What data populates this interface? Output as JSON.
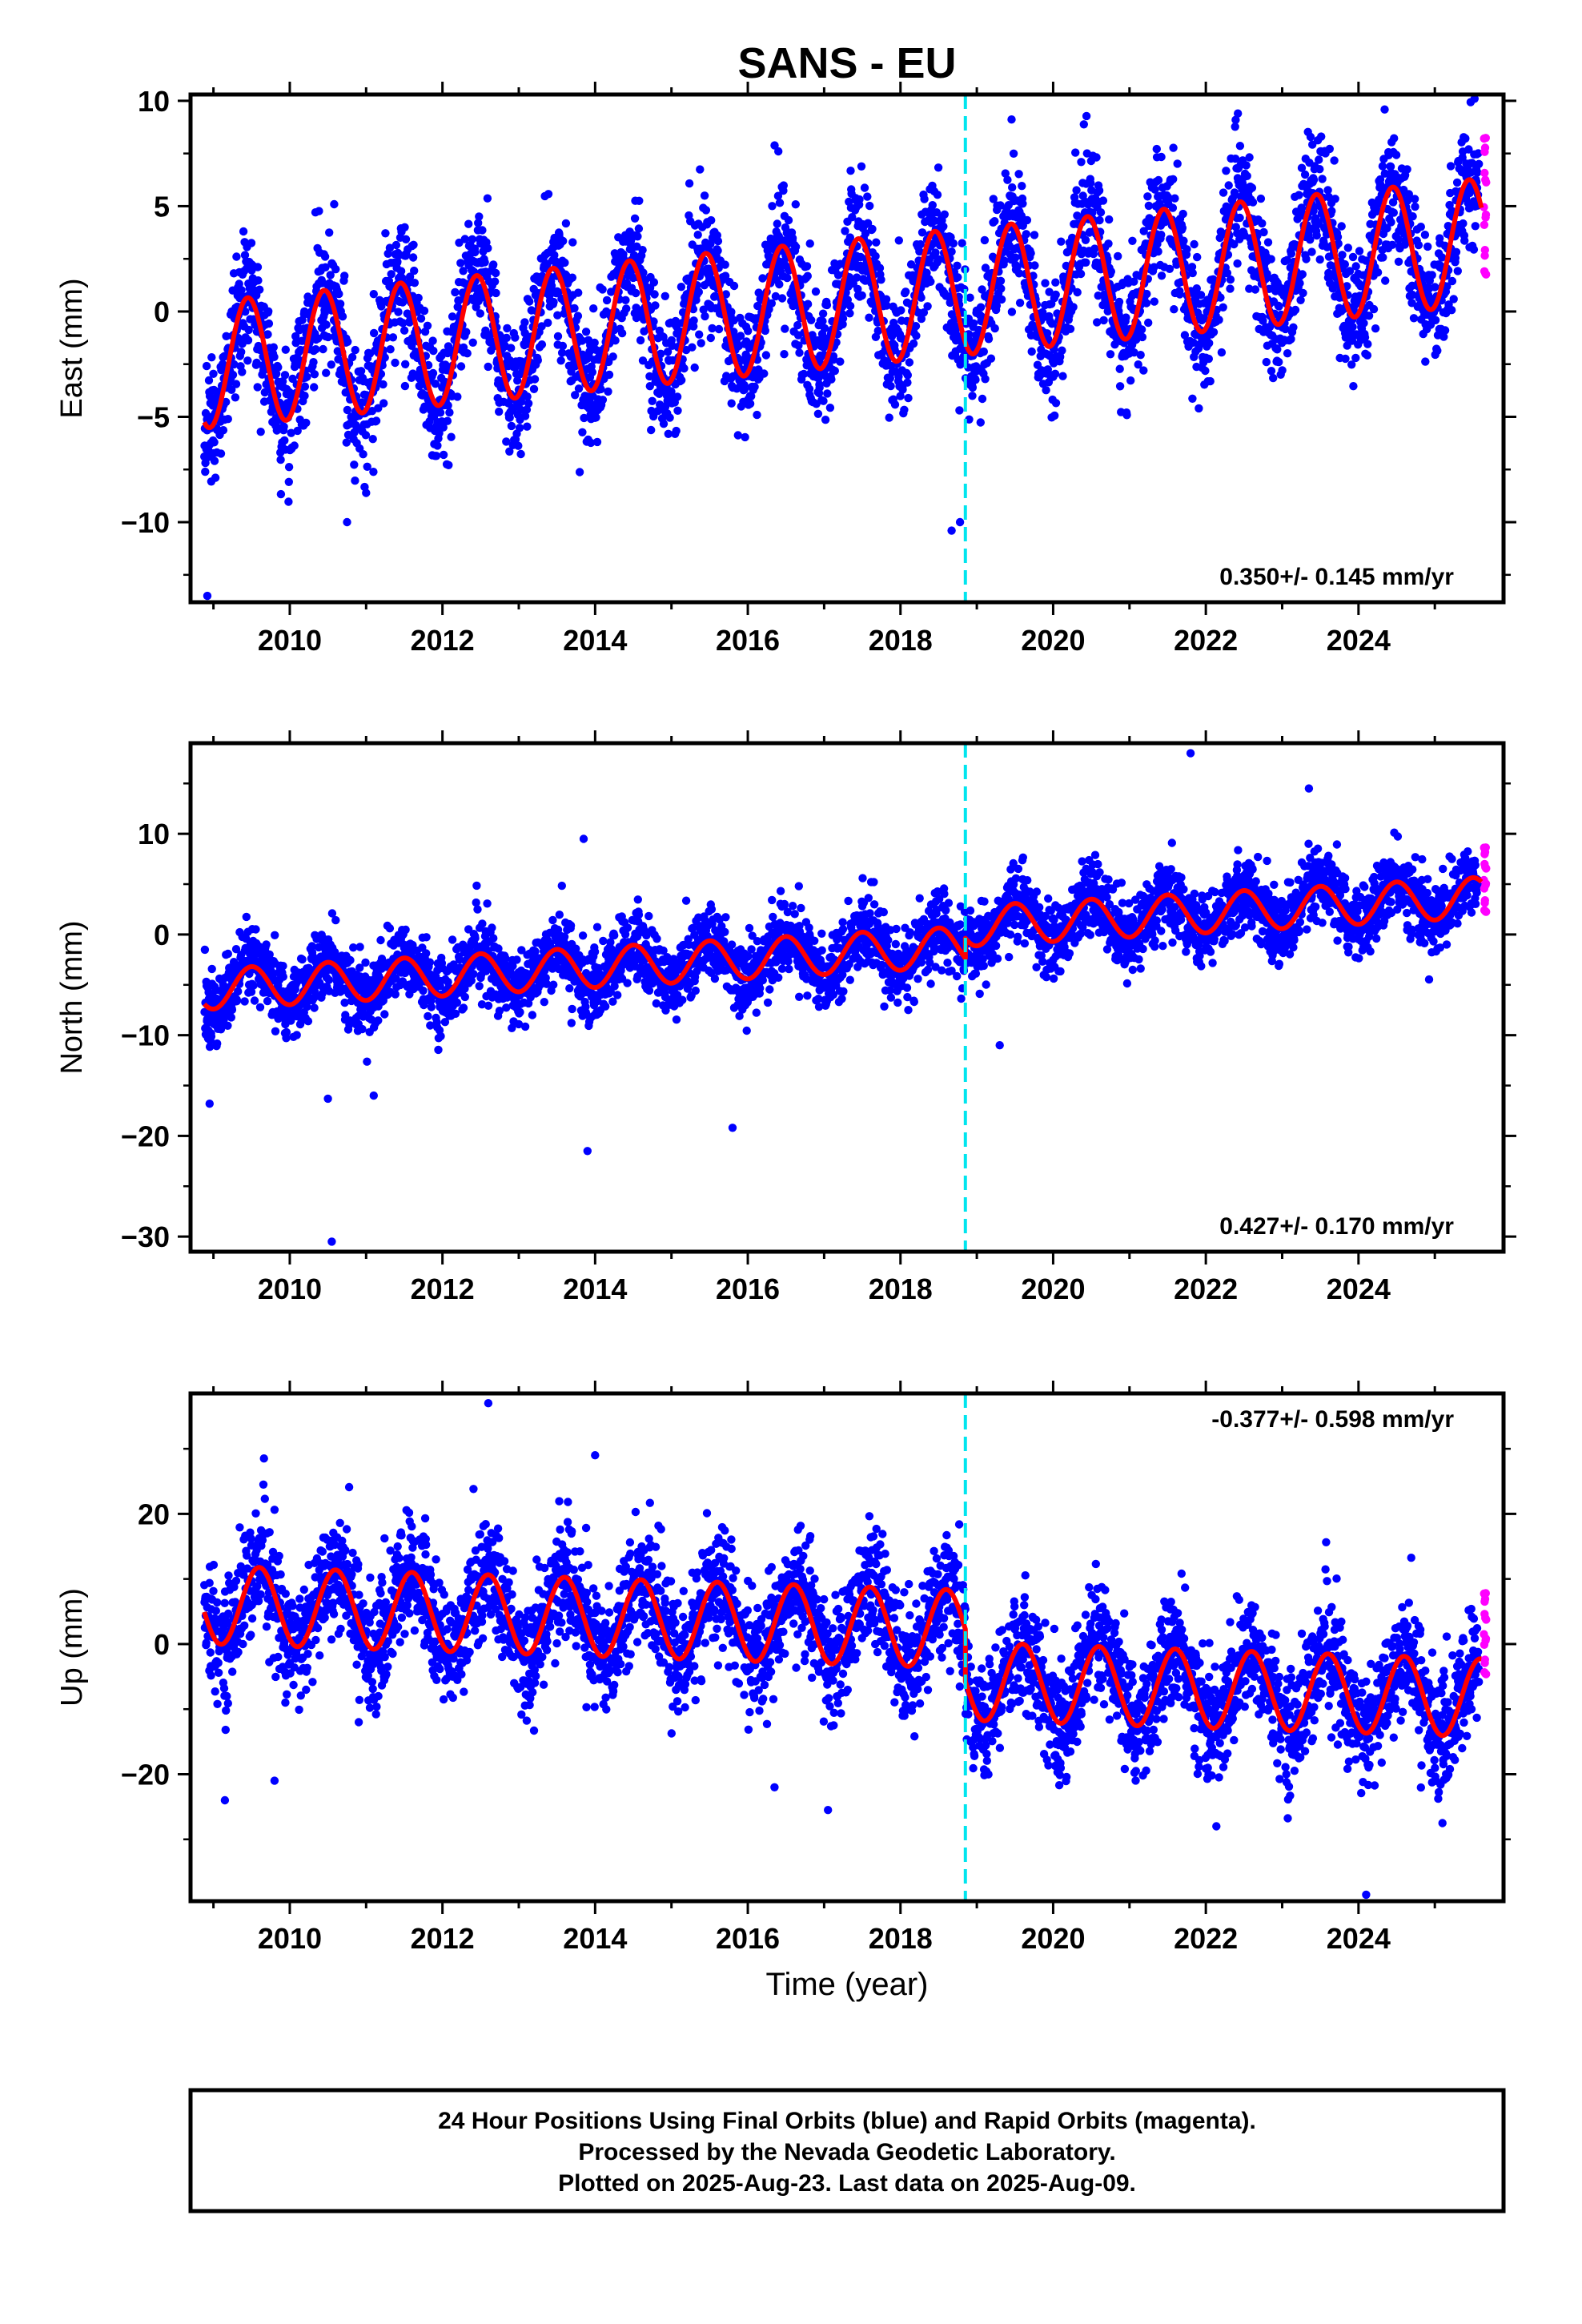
{
  "chart_data": {
    "title": "SANS - EU",
    "xlabel": "Time (year)",
    "type": "scatter",
    "xlim": [
      2008.7,
      2025.9
    ],
    "x_ticks": [
      2010,
      2012,
      2014,
      2016,
      2018,
      2020,
      2022,
      2024
    ],
    "x_tick_labels": [
      "2010",
      "2012",
      "2014",
      "2016",
      "2018",
      "2020",
      "2022",
      "2024"
    ],
    "offset_year": 2018.85,
    "colors": {
      "final": "#0000ff",
      "rapid": "#ff00ff",
      "model": "#ff0000",
      "offset": "#00e5ee"
    },
    "data_start": 2008.88,
    "data_end": 2025.61,
    "rapid_start": 2025.58,
    "panels": [
      {
        "name": "east",
        "ylabel": "East (mm)",
        "ylim": [
          -13.8,
          10.3
        ],
        "y_ticks": [
          10,
          5,
          0,
          -5,
          -10
        ],
        "y_tick_labels": [
          "10",
          "5",
          "0",
          "−5",
          "−10"
        ],
        "rate_label": "0.350+/- 0.145 mm/yr",
        "rate_position": "bottom-right",
        "model": {
          "intercept_2009": -2.5,
          "rate": 0.35,
          "annual_amp": 3.0,
          "peak_phase": 0.45,
          "offset_step": 0.0
        },
        "noise_sd": 1.5,
        "outliers": [
          [
            2008.92,
            -13.5
          ],
          [
            2018.67,
            -10.4
          ],
          [
            2018.78,
            -10.0
          ],
          [
            2016.4,
            7.6
          ],
          [
            2025.52,
            10.1
          ],
          [
            2022.42,
            9.4
          ],
          [
            2010.75,
            -10.0
          ]
        ],
        "rapid": {
          "center": 4.8,
          "range": [
            1.3,
            8.6
          ]
        }
      },
      {
        "name": "north",
        "ylabel": "North (mm)",
        "ylim": [
          -31.5,
          19.0
        ],
        "y_ticks": [
          10,
          0,
          -10,
          -20,
          -30
        ],
        "y_tick_labels": [
          "10",
          "0",
          "−10",
          "−20",
          "−30"
        ],
        "rate_label": "0.427+/- 0.170 mm/yr",
        "rate_position": "bottom-right",
        "model": {
          "intercept_2009": -5.4,
          "rate": 0.427,
          "annual_amp": 2.0,
          "peak_phase": 0.5,
          "offset_step": 2.0
        },
        "noise_sd": 1.8,
        "outliers": [
          [
            2008.95,
            -16.8
          ],
          [
            2010.55,
            -30.5
          ],
          [
            2013.9,
            -21.5
          ],
          [
            2013.85,
            9.5
          ],
          [
            2015.8,
            -19.2
          ],
          [
            2021.8,
            18.0
          ],
          [
            2010.5,
            -16.3
          ],
          [
            2011.1,
            -16.0
          ],
          [
            2019.3,
            -11.0
          ],
          [
            2023.35,
            14.5
          ]
        ],
        "rapid": {
          "center": 5.0,
          "range": [
            1.8,
            9.0
          ]
        }
      },
      {
        "name": "up",
        "ylabel": "Up (mm)",
        "ylim": [
          -39.5,
          38.5
        ],
        "y_ticks": [
          20,
          0,
          -20
        ],
        "y_tick_labels": [
          "20",
          "0",
          "−20"
        ],
        "rate_label": "-0.377+/- 0.598 mm/yr",
        "rate_position": "top-right",
        "model": {
          "intercept_2009": 6.0,
          "rate": -0.377,
          "annual_amp": 6.0,
          "peak_phase": 0.6,
          "offset_step": -8.0
        },
        "noise_sd": 4.5,
        "outliers": [
          [
            2012.6,
            37.0
          ],
          [
            2024.1,
            -38.5
          ],
          [
            2009.15,
            -24.0
          ],
          [
            2009.8,
            -21.0
          ],
          [
            2016.35,
            -22.0
          ],
          [
            2017.05,
            -25.5
          ],
          [
            2025.1,
            -27.5
          ],
          [
            2014.0,
            29.0
          ]
        ],
        "rapid": {
          "center": 2.5,
          "range": [
            -5.5,
            8.5
          ]
        }
      }
    ]
  },
  "footer": {
    "line1": "24 Hour Positions Using Final Orbits (blue) and Rapid Orbits (magenta).",
    "line2": "Processed by the Nevada Geodetic Laboratory.",
    "line3": "Plotted on 2025-Aug-23. Last data on 2025-Aug-09."
  }
}
